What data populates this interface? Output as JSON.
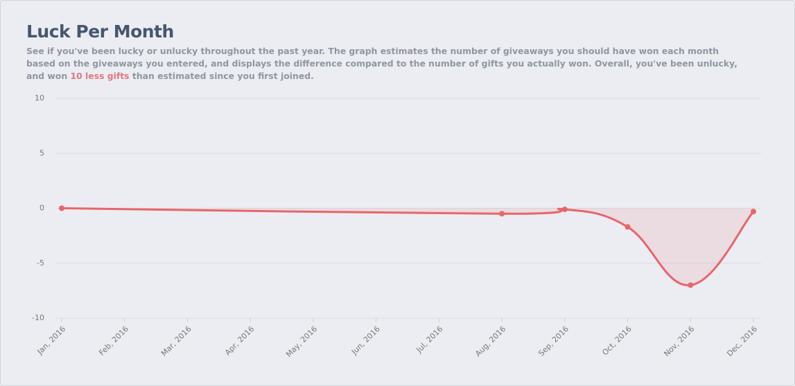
{
  "header": {
    "title": "Luck Per Month",
    "description_before": "See if you've been lucky or unlucky throughout the past year. The graph estimates the number of giveaways you should have won each month based on the giveaways you entered, and displays the difference compared to the number of gifts you actually won. Overall, you've been unlucky, and won",
    "description_highlight": "10 less gifts",
    "description_after": "than estimated since you first joined."
  },
  "chart_data": {
    "type": "line",
    "categories": [
      "Jan, 2016",
      "Feb, 2016",
      "Mar, 2016",
      "Apr, 2016",
      "May, 2016",
      "Jun, 2016",
      "Jul, 2016",
      "Aug, 2016",
      "Sep, 2016",
      "Oct, 2016",
      "Nov, 2016",
      "Dec, 2016"
    ],
    "series": [
      {
        "color": "#e8656a",
        "x": [
          "Jan, 2016",
          "Aug, 2016",
          "Sep, 2016",
          "Oct, 2016",
          "Nov, 2016",
          "Dec, 2016"
        ],
        "values": [
          0,
          -0.5,
          -0.1,
          -1.7,
          -7.0,
          -0.3
        ]
      }
    ],
    "ylim": [
      -10,
      10
    ],
    "yticks": [
      -10,
      -5,
      0,
      5,
      10
    ],
    "grid": true
  }
}
